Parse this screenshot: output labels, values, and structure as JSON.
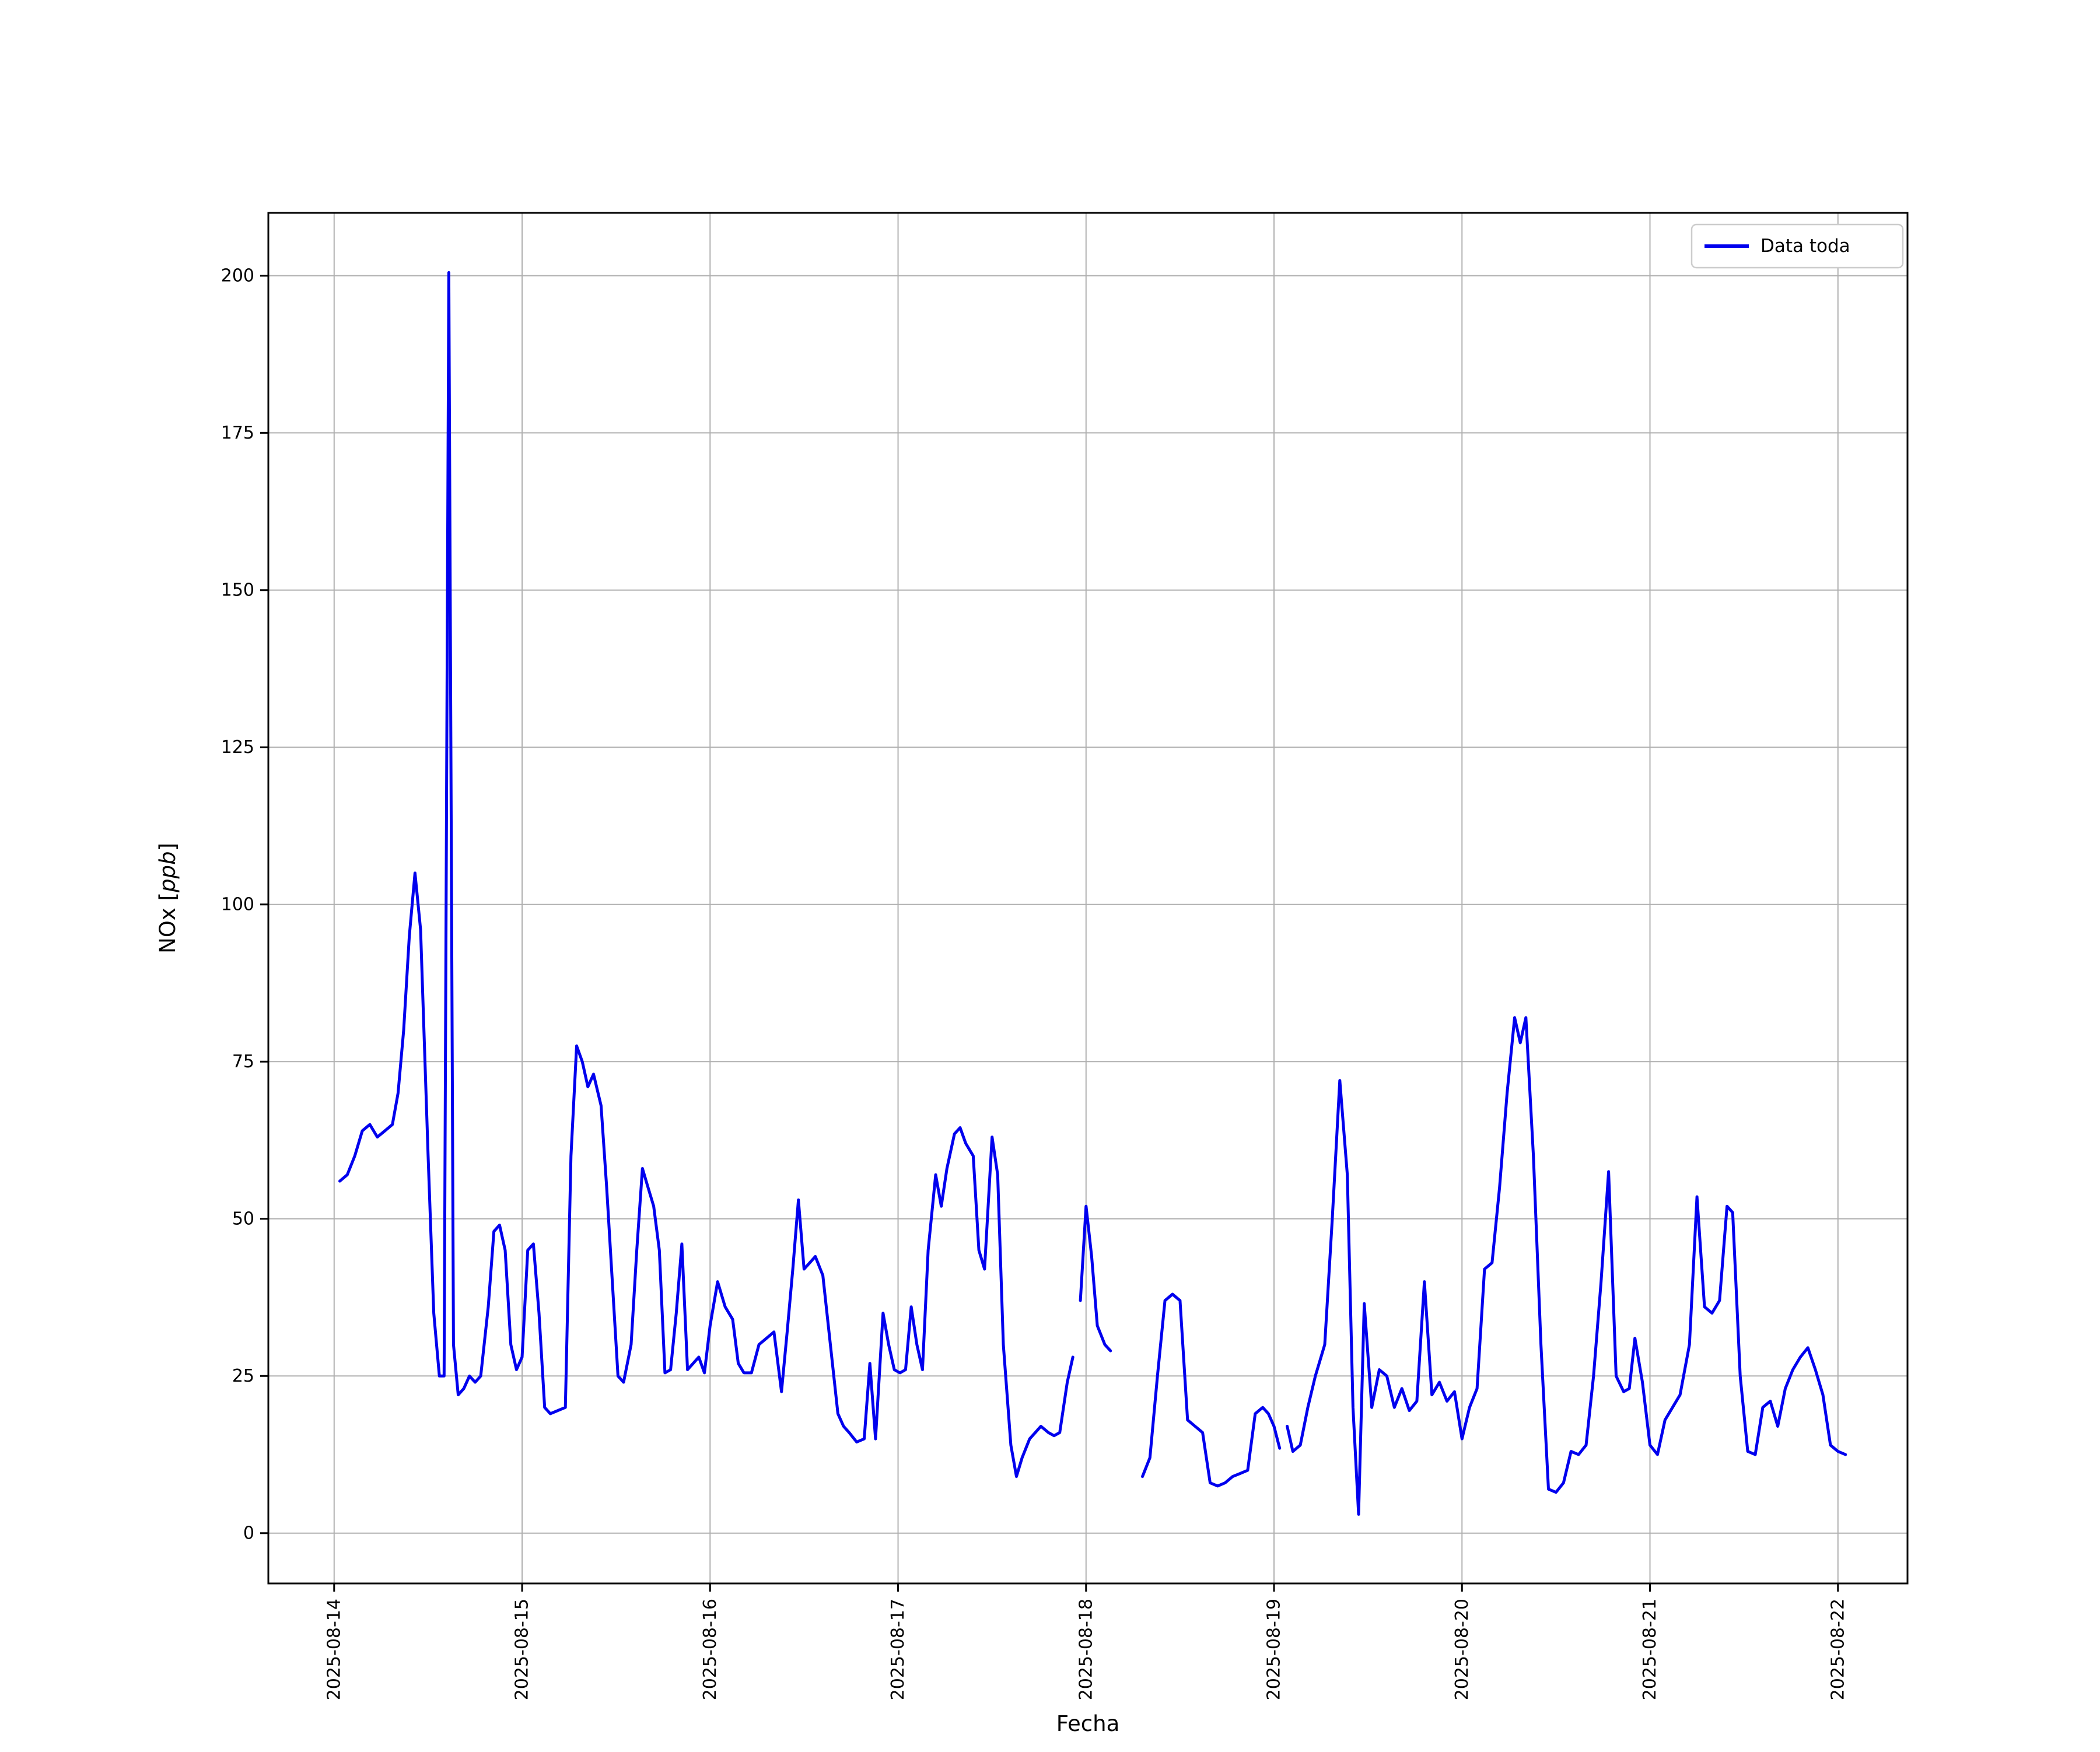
{
  "figure": {
    "xlabel": "Fecha",
    "ylabel_prefix": "NOx [",
    "ylabel_math": "ppb",
    "ylabel_suffix": "]",
    "legend": {
      "label": "Data toda"
    }
  },
  "chart_data": {
    "type": "line",
    "title": "",
    "xlabel": "Fecha",
    "ylabel": "NOx [ppb]",
    "grid": true,
    "legend_position": "upper right",
    "x_axis_note": "x values are days after 2025-08-14 00:00; null entries are gaps in the line",
    "x_tick_labels": [
      "2025-08-14",
      "2025-08-15",
      "2025-08-16",
      "2025-08-17",
      "2025-08-18",
      "2025-08-19",
      "2025-08-20",
      "2025-08-21",
      "2025-08-22"
    ],
    "x_tick_positions_days": [
      0,
      1,
      2,
      3,
      4,
      5,
      6,
      7,
      8
    ],
    "y_ticks": [
      0,
      25,
      50,
      75,
      100,
      125,
      150,
      175,
      200
    ],
    "xlim_days": [
      -0.35,
      8.37
    ],
    "ylim": [
      -8,
      210
    ],
    "series": [
      {
        "name": "Data toda",
        "color": "#0000ee",
        "points": [
          [
            0.03,
            56
          ],
          [
            0.07,
            57
          ],
          [
            0.11,
            60
          ],
          [
            0.15,
            64
          ],
          [
            0.19,
            65
          ],
          [
            0.23,
            63
          ],
          [
            0.27,
            64
          ],
          [
            0.31,
            65
          ],
          [
            0.34,
            70
          ],
          [
            0.37,
            80
          ],
          [
            0.4,
            95
          ],
          [
            0.43,
            105
          ],
          [
            0.46,
            96
          ],
          [
            0.5,
            60
          ],
          [
            0.53,
            35
          ],
          [
            0.56,
            25
          ],
          [
            0.585,
            25
          ],
          [
            0.61,
            200.5
          ],
          [
            0.635,
            30
          ],
          [
            0.66,
            22
          ],
          [
            0.69,
            23
          ],
          [
            0.72,
            25
          ],
          [
            0.75,
            24
          ],
          [
            0.78,
            25
          ],
          [
            0.82,
            36
          ],
          [
            0.85,
            48
          ],
          [
            0.88,
            49
          ],
          [
            0.91,
            45
          ],
          [
            0.94,
            30
          ],
          [
            0.97,
            26
          ],
          [
            1.0,
            28
          ],
          [
            1.03,
            45
          ],
          [
            1.06,
            46
          ],
          [
            1.09,
            35
          ],
          [
            1.12,
            20
          ],
          [
            1.15,
            19
          ],
          [
            1.19,
            19.5
          ],
          [
            1.23,
            20
          ],
          [
            1.26,
            60
          ],
          [
            1.29,
            77.5
          ],
          [
            1.32,
            75
          ],
          [
            1.35,
            71
          ],
          [
            1.38,
            73
          ],
          [
            1.42,
            68
          ],
          [
            1.45,
            55
          ],
          [
            1.48,
            40
          ],
          [
            1.51,
            25
          ],
          [
            1.54,
            24
          ],
          [
            1.58,
            30
          ],
          [
            1.61,
            45
          ],
          [
            1.64,
            58
          ],
          [
            1.67,
            55
          ],
          [
            1.7,
            52
          ],
          [
            1.73,
            45
          ],
          [
            1.76,
            25.5
          ],
          [
            1.79,
            26
          ],
          [
            1.82,
            35
          ],
          [
            1.85,
            46
          ],
          [
            1.88,
            26
          ],
          [
            1.91,
            27
          ],
          [
            1.94,
            28
          ],
          [
            1.97,
            25.5
          ],
          [
            2.0,
            33
          ],
          [
            2.04,
            40
          ],
          [
            2.08,
            36
          ],
          [
            2.12,
            34
          ],
          [
            2.15,
            27
          ],
          [
            2.18,
            25.5
          ],
          [
            2.22,
            25.5
          ],
          [
            2.26,
            30
          ],
          [
            2.3,
            31
          ],
          [
            2.34,
            32
          ],
          [
            2.38,
            22.5
          ],
          [
            2.41,
            32
          ],
          [
            2.44,
            42
          ],
          [
            2.47,
            53
          ],
          [
            2.5,
            42
          ],
          [
            2.53,
            43
          ],
          [
            2.56,
            44
          ],
          [
            2.6,
            41
          ],
          [
            2.64,
            30
          ],
          [
            2.68,
            19
          ],
          [
            2.71,
            17
          ],
          [
            2.74,
            16
          ],
          [
            2.78,
            14.5
          ],
          [
            2.82,
            15
          ],
          [
            2.85,
            27
          ],
          [
            2.88,
            15
          ],
          [
            2.92,
            35
          ],
          [
            2.95,
            30
          ],
          [
            2.98,
            26
          ],
          [
            3.01,
            25.5
          ],
          [
            3.04,
            26
          ],
          [
            3.07,
            36
          ],
          [
            3.1,
            30
          ],
          [
            3.13,
            26
          ],
          [
            3.16,
            45
          ],
          [
            3.2,
            57
          ],
          [
            3.23,
            52
          ],
          [
            3.26,
            58
          ],
          [
            3.3,
            63.5
          ],
          [
            3.33,
            64.5
          ],
          [
            3.36,
            62
          ],
          [
            3.4,
            60
          ],
          [
            3.43,
            45
          ],
          [
            3.46,
            42
          ],
          [
            3.5,
            63
          ],
          [
            3.53,
            57
          ],
          [
            3.56,
            30
          ],
          [
            3.6,
            14
          ],
          [
            3.63,
            9
          ],
          [
            3.66,
            12
          ],
          [
            3.7,
            15
          ],
          [
            3.73,
            16
          ],
          [
            3.76,
            17
          ],
          [
            3.8,
            16
          ],
          [
            3.83,
            15.5
          ],
          [
            3.86,
            16
          ],
          [
            3.9,
            24
          ],
          [
            3.93,
            28
          ],
          null,
          [
            3.97,
            37
          ],
          [
            4.0,
            52
          ],
          [
            4.03,
            44
          ],
          [
            4.06,
            33
          ],
          [
            4.1,
            30
          ],
          [
            4.13,
            29
          ],
          null,
          [
            4.3,
            9
          ],
          [
            4.34,
            12
          ],
          [
            4.38,
            25
          ],
          [
            4.42,
            37
          ],
          [
            4.46,
            38
          ],
          [
            4.5,
            37
          ],
          [
            4.54,
            18
          ],
          [
            4.58,
            17
          ],
          [
            4.62,
            16
          ],
          [
            4.66,
            8
          ],
          [
            4.7,
            7.5
          ],
          [
            4.74,
            8
          ],
          [
            4.78,
            9
          ],
          [
            4.82,
            9.5
          ],
          [
            4.86,
            10
          ],
          [
            4.9,
            19
          ],
          [
            4.94,
            20
          ],
          [
            4.97,
            19
          ],
          [
            5.0,
            17
          ],
          [
            5.03,
            13.5
          ],
          null,
          [
            5.07,
            17
          ],
          [
            5.1,
            13
          ],
          [
            5.14,
            14
          ],
          [
            5.18,
            20
          ],
          [
            5.22,
            25
          ],
          [
            5.27,
            30
          ],
          [
            5.31,
            50
          ],
          [
            5.35,
            72
          ],
          [
            5.39,
            57
          ],
          [
            5.42,
            20
          ],
          [
            5.45,
            3
          ],
          [
            5.48,
            36.5
          ],
          [
            5.52,
            20
          ],
          [
            5.56,
            26
          ],
          [
            5.6,
            25
          ],
          [
            5.64,
            20
          ],
          [
            5.68,
            23
          ],
          [
            5.72,
            19.5
          ],
          [
            5.76,
            21
          ],
          [
            5.8,
            40
          ],
          [
            5.84,
            22
          ],
          [
            5.88,
            24
          ],
          [
            5.92,
            21
          ],
          [
            5.96,
            22.5
          ],
          [
            6.0,
            15
          ],
          [
            6.04,
            20
          ],
          [
            6.08,
            23
          ],
          [
            6.12,
            42
          ],
          [
            6.16,
            43
          ],
          [
            6.2,
            55
          ],
          [
            6.24,
            70
          ],
          [
            6.28,
            82
          ],
          [
            6.31,
            78
          ],
          [
            6.34,
            82
          ],
          [
            6.38,
            60
          ],
          [
            6.42,
            30
          ],
          [
            6.46,
            7
          ],
          [
            6.5,
            6.5
          ],
          [
            6.54,
            8
          ],
          [
            6.58,
            13
          ],
          [
            6.62,
            12.5
          ],
          [
            6.66,
            14
          ],
          [
            6.7,
            25
          ],
          [
            6.74,
            40
          ],
          [
            6.78,
            57.5
          ],
          [
            6.82,
            25
          ],
          [
            6.86,
            22.5
          ],
          [
            6.89,
            23
          ],
          [
            6.92,
            31
          ],
          [
            6.96,
            24
          ],
          [
            7.0,
            14
          ],
          [
            7.04,
            12.5
          ],
          [
            7.08,
            18
          ],
          [
            7.12,
            20
          ],
          [
            7.16,
            22
          ],
          [
            7.21,
            30
          ],
          [
            7.25,
            53.5
          ],
          [
            7.29,
            36
          ],
          [
            7.33,
            35
          ],
          [
            7.37,
            37
          ],
          [
            7.41,
            52
          ],
          [
            7.44,
            51
          ],
          [
            7.48,
            25
          ],
          [
            7.52,
            13
          ],
          [
            7.56,
            12.5
          ],
          [
            7.6,
            20
          ],
          [
            7.64,
            21
          ],
          [
            7.68,
            17
          ],
          [
            7.72,
            23
          ],
          [
            7.76,
            26
          ],
          [
            7.8,
            28
          ],
          [
            7.84,
            29.5
          ],
          [
            7.88,
            26
          ],
          [
            7.92,
            22
          ],
          [
            7.96,
            14
          ],
          [
            8.0,
            13
          ],
          [
            8.04,
            12.5
          ]
        ]
      }
    ]
  }
}
